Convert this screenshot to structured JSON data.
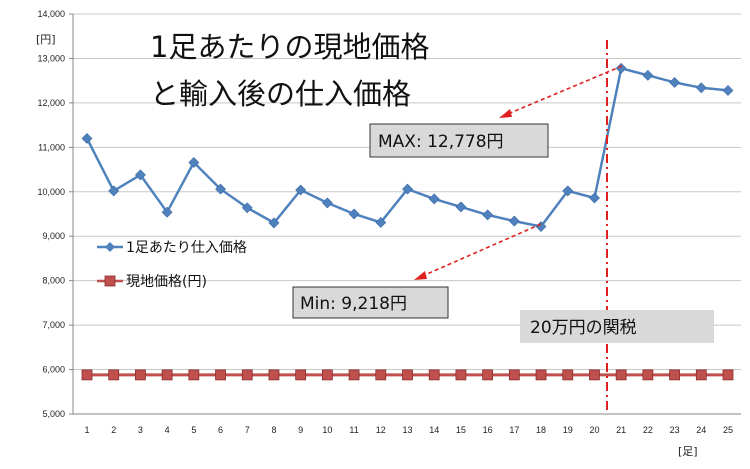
{
  "chart_data": {
    "type": "line",
    "title_lines": [
      "1足あたりの現地価格",
      "と輸入後の仕入価格"
    ],
    "y_unit": "[円]",
    "x_unit": "[足]",
    "ylim": [
      5000,
      14000
    ],
    "y_ticks": [
      "5,000",
      "6,000",
      "7,000",
      "8,000",
      "9,000",
      "10,000",
      "11,000",
      "12,000",
      "13,000",
      "14,000"
    ],
    "y_tick_values": [
      5000,
      6000,
      7000,
      8000,
      9000,
      10000,
      11000,
      12000,
      13000,
      14000
    ],
    "grid": true,
    "x": [
      1,
      2,
      3,
      4,
      5,
      6,
      7,
      8,
      9,
      10,
      11,
      12,
      13,
      14,
      15,
      16,
      17,
      18,
      19,
      20,
      21,
      22,
      23,
      24,
      25
    ],
    "x_tick_labels": [
      "1",
      "2",
      "3",
      "4",
      "5",
      "6",
      "7",
      "8",
      "9",
      "10",
      "11",
      "12",
      "13",
      "14",
      "15",
      "16",
      "17",
      "18",
      "19",
      "20",
      "21",
      "22",
      "23",
      "24",
      "25"
    ],
    "series": [
      {
        "name": "1足あたり仕入価格",
        "color": "#4f81bd",
        "marker": "diamond",
        "values": [
          11200,
          10020,
          10380,
          9540,
          10660,
          10060,
          9640,
          9300,
          10040,
          9750,
          9500,
          9310,
          10060,
          9840,
          9660,
          9480,
          9340,
          9218,
          10020,
          9860,
          12778,
          12620,
          12460,
          12340,
          12280
        ]
      },
      {
        "name": "現地価格(円)",
        "color": "#c0504d",
        "marker": "square",
        "values": [
          5880,
          5880,
          5880,
          5880,
          5880,
          5880,
          5880,
          5880,
          5880,
          5880,
          5880,
          5880,
          5880,
          5880,
          5880,
          5880,
          5880,
          5880,
          5880,
          5880,
          5880,
          5880,
          5880,
          5880,
          5880
        ]
      }
    ],
    "annotations": [
      {
        "label": "MAX: 12,778円",
        "target_x": 21,
        "target_y": 12778
      },
      {
        "label": "Min: 9,218円",
        "target_x": 18,
        "target_y": 9218
      },
      {
        "label": "20万円の関税",
        "at_x": 20.5
      }
    ],
    "legend_position": "left-middle"
  }
}
